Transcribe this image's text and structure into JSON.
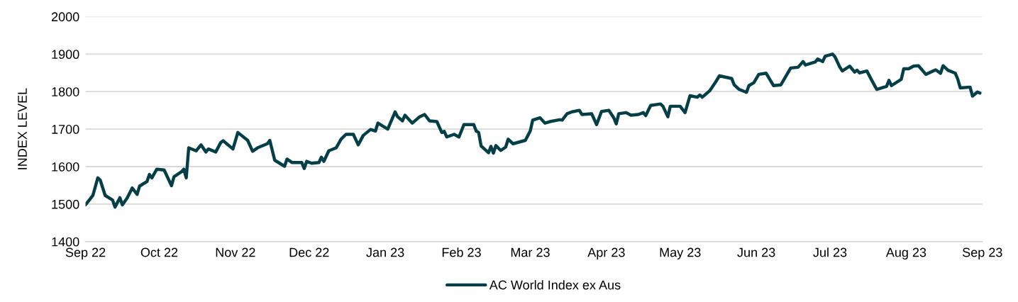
{
  "chart_data": {
    "type": "line",
    "ylabel": "INDEX LEVEL",
    "x": [
      "2022-09-01",
      "2022-09-04",
      "2022-09-06",
      "2022-09-07",
      "2022-09-09",
      "2022-09-12",
      "2022-09-13",
      "2022-09-15",
      "2022-09-16",
      "2022-09-18",
      "2022-09-20",
      "2022-09-22",
      "2022-09-23",
      "2022-09-26",
      "2022-09-27",
      "2022-09-28",
      "2022-09-30",
      "2022-10-03",
      "2022-10-06",
      "2022-10-07",
      "2022-10-10",
      "2022-10-11",
      "2022-10-12",
      "2022-10-13",
      "2022-10-16",
      "2022-10-18",
      "2022-10-20",
      "2022-10-21",
      "2022-10-24",
      "2022-10-26",
      "2022-10-27",
      "2022-10-31",
      "2022-11-02",
      "2022-11-06",
      "2022-11-08",
      "2022-11-10",
      "2022-11-14",
      "2022-11-15",
      "2022-11-17",
      "2022-11-21",
      "2022-11-22",
      "2022-11-24",
      "2022-11-28",
      "2022-11-29",
      "2022-11-30",
      "2022-12-02",
      "2022-12-05",
      "2022-12-06",
      "2022-12-07",
      "2022-12-09",
      "2022-12-12",
      "2022-12-14",
      "2022-12-16",
      "2022-12-19",
      "2022-12-21",
      "2022-12-23",
      "2022-12-26",
      "2022-12-28",
      "2022-12-29",
      "2023-01-02",
      "2023-01-05",
      "2023-01-06",
      "2023-01-08",
      "2023-01-09",
      "2023-01-12",
      "2023-01-15",
      "2023-01-17",
      "2023-01-19",
      "2023-01-22",
      "2023-01-24",
      "2023-01-25",
      "2023-01-26",
      "2023-01-29",
      "2023-01-31",
      "2023-02-02",
      "2023-02-06",
      "2023-02-07",
      "2023-02-08",
      "2023-02-09",
      "2023-02-12",
      "2023-02-13",
      "2023-02-14",
      "2023-02-15",
      "2023-02-17",
      "2023-02-19",
      "2023-02-20",
      "2023-02-22",
      "2023-02-27",
      "2023-03-01",
      "2023-03-02",
      "2023-03-05",
      "2023-03-07",
      "2023-03-09",
      "2023-03-13",
      "2023-03-14",
      "2023-03-16",
      "2023-03-18",
      "2023-03-21",
      "2023-03-22",
      "2023-03-26",
      "2023-03-28",
      "2023-03-30",
      "2023-04-02",
      "2023-04-04",
      "2023-04-05",
      "2023-04-06",
      "2023-04-09",
      "2023-04-11",
      "2023-04-14",
      "2023-04-16",
      "2023-04-17",
      "2023-04-19",
      "2023-04-23",
      "2023-04-24",
      "2023-04-26",
      "2023-04-27",
      "2023-05-01",
      "2023-05-03",
      "2023-05-05",
      "2023-05-08",
      "2023-05-09",
      "2023-05-10",
      "2023-05-13",
      "2023-05-15",
      "2023-05-17",
      "2023-05-22",
      "2023-05-23",
      "2023-05-25",
      "2023-05-28",
      "2023-05-29",
      "2023-05-31",
      "2023-06-02",
      "2023-06-05",
      "2023-06-08",
      "2023-06-11",
      "2023-06-15",
      "2023-06-18",
      "2023-06-20",
      "2023-06-21",
      "2023-06-25",
      "2023-06-26",
      "2023-06-28",
      "2023-06-29",
      "2023-07-02",
      "2023-07-03",
      "2023-07-05",
      "2023-07-06",
      "2023-07-09",
      "2023-07-11",
      "2023-07-12",
      "2023-07-13",
      "2023-07-16",
      "2023-07-18",
      "2023-07-20",
      "2023-07-24",
      "2023-07-25",
      "2023-07-26",
      "2023-07-30",
      "2023-07-31",
      "2023-08-02",
      "2023-08-04",
      "2023-08-06",
      "2023-08-09",
      "2023-08-13",
      "2023-08-15",
      "2023-08-16",
      "2023-08-18",
      "2023-08-21",
      "2023-08-22",
      "2023-08-23",
      "2023-08-27",
      "2023-08-28",
      "2023-08-30",
      "2023-08-31"
    ],
    "series": [
      {
        "name": "AC World Index ex Aus",
        "color": "#043f47",
        "values": [
          1498,
          1523,
          1570,
          1564,
          1523,
          1511,
          1492,
          1517,
          1498,
          1517,
          1543,
          1526,
          1548,
          1560,
          1579,
          1570,
          1593,
          1591,
          1549,
          1573,
          1586,
          1593,
          1570,
          1650,
          1642,
          1658,
          1639,
          1647,
          1639,
          1664,
          1669,
          1647,
          1691,
          1670,
          1641,
          1650,
          1661,
          1670,
          1617,
          1601,
          1620,
          1611,
          1611,
          1595,
          1614,
          1609,
          1611,
          1625,
          1614,
          1642,
          1650,
          1673,
          1686,
          1686,
          1658,
          1683,
          1699,
          1695,
          1716,
          1700,
          1746,
          1733,
          1722,
          1737,
          1716,
          1733,
          1739,
          1722,
          1720,
          1691,
          1694,
          1679,
          1686,
          1679,
          1712,
          1712,
          1695,
          1691,
          1655,
          1637,
          1654,
          1636,
          1656,
          1643,
          1652,
          1673,
          1661,
          1670,
          1695,
          1724,
          1730,
          1716,
          1720,
          1725,
          1724,
          1741,
          1746,
          1750,
          1739,
          1741,
          1712,
          1747,
          1750,
          1730,
          1714,
          1741,
          1744,
          1737,
          1739,
          1744,
          1736,
          1763,
          1767,
          1761,
          1733,
          1761,
          1761,
          1744,
          1789,
          1785,
          1791,
          1785,
          1802,
          1821,
          1842,
          1835,
          1818,
          1806,
          1798,
          1816,
          1824,
          1846,
          1849,
          1816,
          1818,
          1863,
          1865,
          1880,
          1871,
          1879,
          1887,
          1880,
          1894,
          1900,
          1893,
          1865,
          1855,
          1868,
          1852,
          1857,
          1850,
          1855,
          1830,
          1806,
          1814,
          1830,
          1816,
          1833,
          1861,
          1861,
          1868,
          1869,
          1846,
          1858,
          1849,
          1869,
          1857,
          1849,
          1833,
          1810,
          1812,
          1788,
          1799,
          1796
        ]
      }
    ],
    "xlim": [
      "2022-09-01",
      "2023-09-01"
    ],
    "xticks": [
      {
        "value": "2022-09-01",
        "label": "Sep 22"
      },
      {
        "value": "2022-10-01",
        "label": "Oct 22"
      },
      {
        "value": "2022-11-01",
        "label": "Nov 22"
      },
      {
        "value": "2022-12-01",
        "label": "Dec 22"
      },
      {
        "value": "2023-01-01",
        "label": "Jan 23"
      },
      {
        "value": "2023-02-01",
        "label": "Feb 23"
      },
      {
        "value": "2023-03-01",
        "label": "Mar 23"
      },
      {
        "value": "2023-04-01",
        "label": "Apr 23"
      },
      {
        "value": "2023-05-01",
        "label": "May 23"
      },
      {
        "value": "2023-06-01",
        "label": "Jun 23"
      },
      {
        "value": "2023-07-01",
        "label": "Jul 23"
      },
      {
        "value": "2023-08-01",
        "label": "Aug 23"
      },
      {
        "value": "2023-09-01",
        "label": "Sep 23"
      }
    ],
    "ylim": [
      1400,
      2000
    ],
    "yticks": [
      1400,
      1500,
      1600,
      1700,
      1800,
      1900,
      2000
    ],
    "grid": "y",
    "legend": "bottom",
    "marker": "none",
    "line_style": "solid"
  }
}
